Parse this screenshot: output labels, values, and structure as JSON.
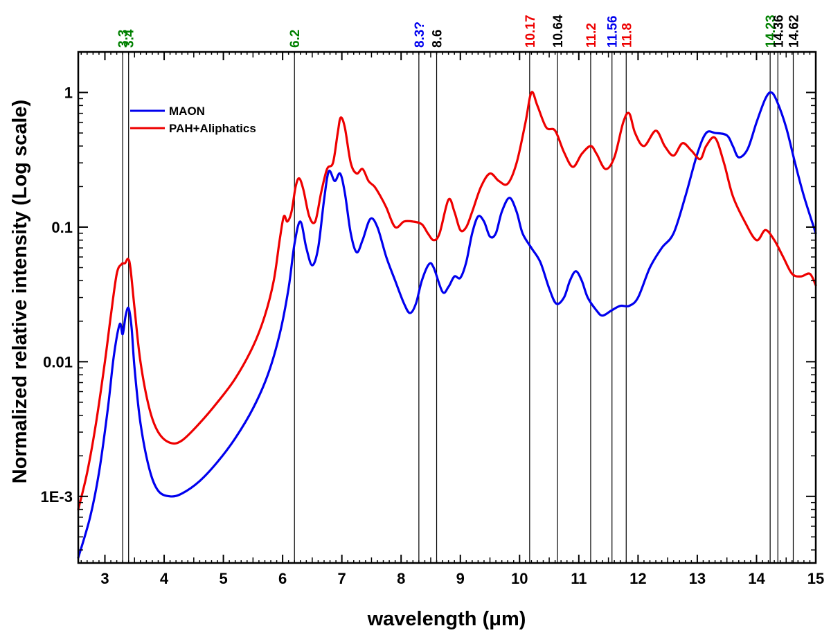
{
  "chart_data": {
    "type": "line",
    "title": "",
    "xlabel": "wavelength (μm)",
    "ylabel": "Normalized relative intensity (Log scale)",
    "y_scale": "log",
    "xlim": [
      2.55,
      15.0
    ],
    "ylim": [
      0.00032,
      2.0
    ],
    "x_ticks": [
      3,
      4,
      5,
      6,
      7,
      8,
      9,
      10,
      11,
      12,
      13,
      14,
      15
    ],
    "y_ticks": [
      {
        "value": 0.001,
        "label": "1E-3"
      },
      {
        "value": 0.01,
        "label": "0.01"
      },
      {
        "value": 0.1,
        "label": "0.1"
      },
      {
        "value": 1,
        "label": "1"
      }
    ],
    "legend": {
      "position": "top-left",
      "entries": [
        "MAON",
        "PAH+Aliphatics"
      ]
    },
    "series": [
      {
        "name": "MAON",
        "color": "#0000ee",
        "points": [
          [
            2.55,
            0.00035
          ],
          [
            2.75,
            0.0007
          ],
          [
            2.9,
            0.0015
          ],
          [
            3.05,
            0.0045
          ],
          [
            3.15,
            0.011
          ],
          [
            3.25,
            0.019
          ],
          [
            3.3,
            0.016
          ],
          [
            3.35,
            0.022
          ],
          [
            3.4,
            0.025
          ],
          [
            3.45,
            0.018
          ],
          [
            3.5,
            0.009
          ],
          [
            3.6,
            0.0035
          ],
          [
            3.75,
            0.0016
          ],
          [
            3.9,
            0.0011
          ],
          [
            4.1,
            0.001
          ],
          [
            4.3,
            0.00105
          ],
          [
            4.6,
            0.0013
          ],
          [
            4.9,
            0.0018
          ],
          [
            5.2,
            0.0027
          ],
          [
            5.5,
            0.0045
          ],
          [
            5.75,
            0.008
          ],
          [
            5.95,
            0.016
          ],
          [
            6.1,
            0.035
          ],
          [
            6.2,
            0.075
          ],
          [
            6.3,
            0.11
          ],
          [
            6.4,
            0.07
          ],
          [
            6.5,
            0.052
          ],
          [
            6.6,
            0.07
          ],
          [
            6.7,
            0.16
          ],
          [
            6.78,
            0.26
          ],
          [
            6.88,
            0.22
          ],
          [
            6.97,
            0.25
          ],
          [
            7.05,
            0.18
          ],
          [
            7.15,
            0.09
          ],
          [
            7.25,
            0.065
          ],
          [
            7.35,
            0.08
          ],
          [
            7.48,
            0.115
          ],
          [
            7.6,
            0.1
          ],
          [
            7.75,
            0.06
          ],
          [
            7.9,
            0.04
          ],
          [
            8.05,
            0.027
          ],
          [
            8.15,
            0.023
          ],
          [
            8.25,
            0.027
          ],
          [
            8.35,
            0.04
          ],
          [
            8.47,
            0.053
          ],
          [
            8.55,
            0.05
          ],
          [
            8.7,
            0.033
          ],
          [
            8.8,
            0.036
          ],
          [
            8.9,
            0.043
          ],
          [
            9.0,
            0.042
          ],
          [
            9.1,
            0.055
          ],
          [
            9.2,
            0.09
          ],
          [
            9.3,
            0.12
          ],
          [
            9.4,
            0.11
          ],
          [
            9.5,
            0.085
          ],
          [
            9.6,
            0.09
          ],
          [
            9.7,
            0.13
          ],
          [
            9.83,
            0.165
          ],
          [
            9.95,
            0.13
          ],
          [
            10.05,
            0.09
          ],
          [
            10.2,
            0.07
          ],
          [
            10.35,
            0.055
          ],
          [
            10.5,
            0.035
          ],
          [
            10.62,
            0.027
          ],
          [
            10.75,
            0.03
          ],
          [
            10.85,
            0.04
          ],
          [
            10.95,
            0.047
          ],
          [
            11.05,
            0.04
          ],
          [
            11.15,
            0.03
          ],
          [
            11.3,
            0.024
          ],
          [
            11.4,
            0.022
          ],
          [
            11.55,
            0.024
          ],
          [
            11.7,
            0.026
          ],
          [
            11.85,
            0.026
          ],
          [
            12.0,
            0.03
          ],
          [
            12.2,
            0.05
          ],
          [
            12.4,
            0.07
          ],
          [
            12.6,
            0.09
          ],
          [
            12.8,
            0.17
          ],
          [
            13.0,
            0.35
          ],
          [
            13.15,
            0.5
          ],
          [
            13.3,
            0.5
          ],
          [
            13.5,
            0.48
          ],
          [
            13.6,
            0.4
          ],
          [
            13.7,
            0.33
          ],
          [
            13.85,
            0.38
          ],
          [
            14.0,
            0.6
          ],
          [
            14.15,
            0.9
          ],
          [
            14.25,
            1.0
          ],
          [
            14.35,
            0.85
          ],
          [
            14.5,
            0.55
          ],
          [
            14.65,
            0.3
          ],
          [
            14.8,
            0.17
          ],
          [
            15.0,
            0.09
          ]
        ]
      },
      {
        "name": "PAH+Aliphatics",
        "color": "#ee0000",
        "points": [
          [
            2.55,
            0.0008
          ],
          [
            2.7,
            0.0015
          ],
          [
            2.85,
            0.0035
          ],
          [
            3.0,
            0.01
          ],
          [
            3.1,
            0.022
          ],
          [
            3.2,
            0.045
          ],
          [
            3.28,
            0.053
          ],
          [
            3.34,
            0.054
          ],
          [
            3.39,
            0.058
          ],
          [
            3.43,
            0.05
          ],
          [
            3.5,
            0.025
          ],
          [
            3.6,
            0.01
          ],
          [
            3.75,
            0.0045
          ],
          [
            3.9,
            0.003
          ],
          [
            4.1,
            0.0025
          ],
          [
            4.3,
            0.0026
          ],
          [
            4.6,
            0.0035
          ],
          [
            4.9,
            0.005
          ],
          [
            5.2,
            0.0075
          ],
          [
            5.5,
            0.013
          ],
          [
            5.7,
            0.022
          ],
          [
            5.85,
            0.04
          ],
          [
            5.95,
            0.08
          ],
          [
            6.02,
            0.12
          ],
          [
            6.08,
            0.11
          ],
          [
            6.15,
            0.13
          ],
          [
            6.22,
            0.2
          ],
          [
            6.28,
            0.23
          ],
          [
            6.35,
            0.19
          ],
          [
            6.45,
            0.12
          ],
          [
            6.55,
            0.11
          ],
          [
            6.65,
            0.18
          ],
          [
            6.75,
            0.27
          ],
          [
            6.85,
            0.3
          ],
          [
            6.93,
            0.5
          ],
          [
            6.98,
            0.65
          ],
          [
            7.05,
            0.55
          ],
          [
            7.15,
            0.3
          ],
          [
            7.25,
            0.25
          ],
          [
            7.35,
            0.27
          ],
          [
            7.45,
            0.22
          ],
          [
            7.55,
            0.2
          ],
          [
            7.65,
            0.17
          ],
          [
            7.75,
            0.14
          ],
          [
            7.9,
            0.1
          ],
          [
            8.05,
            0.11
          ],
          [
            8.2,
            0.11
          ],
          [
            8.35,
            0.105
          ],
          [
            8.45,
            0.09
          ],
          [
            8.55,
            0.08
          ],
          [
            8.65,
            0.09
          ],
          [
            8.8,
            0.16
          ],
          [
            8.9,
            0.13
          ],
          [
            9.0,
            0.095
          ],
          [
            9.1,
            0.1
          ],
          [
            9.2,
            0.13
          ],
          [
            9.35,
            0.2
          ],
          [
            9.5,
            0.25
          ],
          [
            9.65,
            0.22
          ],
          [
            9.8,
            0.21
          ],
          [
            9.95,
            0.3
          ],
          [
            10.1,
            0.6
          ],
          [
            10.2,
            1.0
          ],
          [
            10.3,
            0.8
          ],
          [
            10.45,
            0.55
          ],
          [
            10.6,
            0.52
          ],
          [
            10.75,
            0.36
          ],
          [
            10.9,
            0.28
          ],
          [
            11.05,
            0.35
          ],
          [
            11.2,
            0.4
          ],
          [
            11.3,
            0.35
          ],
          [
            11.45,
            0.27
          ],
          [
            11.6,
            0.33
          ],
          [
            11.75,
            0.6
          ],
          [
            11.85,
            0.7
          ],
          [
            11.95,
            0.5
          ],
          [
            12.1,
            0.4
          ],
          [
            12.3,
            0.52
          ],
          [
            12.45,
            0.4
          ],
          [
            12.6,
            0.34
          ],
          [
            12.75,
            0.42
          ],
          [
            12.9,
            0.37
          ],
          [
            13.05,
            0.32
          ],
          [
            13.15,
            0.4
          ],
          [
            13.3,
            0.46
          ],
          [
            13.45,
            0.3
          ],
          [
            13.6,
            0.17
          ],
          [
            13.8,
            0.11
          ],
          [
            14.0,
            0.08
          ],
          [
            14.15,
            0.095
          ],
          [
            14.3,
            0.08
          ],
          [
            14.45,
            0.06
          ],
          [
            14.6,
            0.045
          ],
          [
            14.75,
            0.043
          ],
          [
            14.9,
            0.045
          ],
          [
            15.0,
            0.037
          ]
        ]
      }
    ],
    "vertical_lines": [
      {
        "x": 3.3,
        "label": "3.3",
        "color": "#008000"
      },
      {
        "x": 3.4,
        "label": "3.4",
        "color": "#008000"
      },
      {
        "x": 6.2,
        "label": "6.2",
        "color": "#008000"
      },
      {
        "x": 8.3,
        "label": "8.3?",
        "color": "#0000ee"
      },
      {
        "x": 8.6,
        "label": "8.6",
        "color": "#000000"
      },
      {
        "x": 10.17,
        "label": "10.17",
        "color": "#ee0000"
      },
      {
        "x": 10.64,
        "label": "10.64",
        "color": "#000000"
      },
      {
        "x": 11.2,
        "label": "11.2",
        "color": "#ee0000"
      },
      {
        "x": 11.56,
        "label": "11.56",
        "color": "#0000ee"
      },
      {
        "x": 11.8,
        "label": "11.8",
        "color": "#ee0000"
      },
      {
        "x": 14.23,
        "label": "14.23",
        "color": "#008000"
      },
      {
        "x": 14.36,
        "label": "14.36",
        "color": "#000000"
      },
      {
        "x": 14.62,
        "label": "14.62",
        "color": "#000000"
      }
    ]
  }
}
